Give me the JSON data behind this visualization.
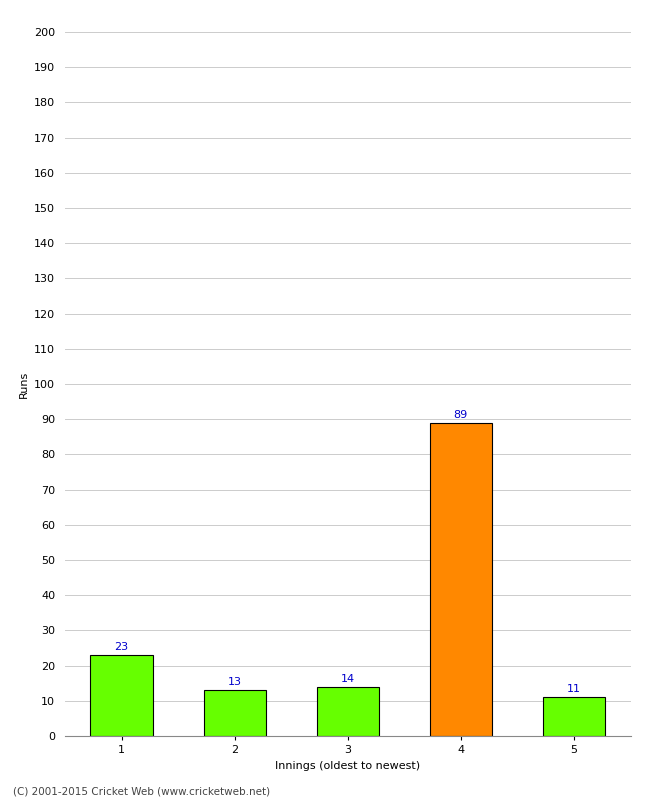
{
  "categories": [
    1,
    2,
    3,
    4,
    5
  ],
  "values": [
    23,
    13,
    14,
    89,
    11
  ],
  "bar_colors": [
    "#66ff00",
    "#66ff00",
    "#66ff00",
    "#ff8800",
    "#66ff00"
  ],
  "bar_edge_color": "#000000",
  "value_labels": [
    23,
    13,
    14,
    89,
    11
  ],
  "value_label_color": "#0000cc",
  "xlabel": "Innings (oldest to newest)",
  "ylabel": "Runs",
  "ylim": [
    0,
    200
  ],
  "yticks": [
    0,
    10,
    20,
    30,
    40,
    50,
    60,
    70,
    80,
    90,
    100,
    110,
    120,
    130,
    140,
    150,
    160,
    170,
    180,
    190,
    200
  ],
  "grid_color": "#cccccc",
  "background_color": "#ffffff",
  "footer": "(C) 2001-2015 Cricket Web (www.cricketweb.net)",
  "footer_color": "#444444",
  "bar_width": 0.55,
  "value_label_fontsize": 8,
  "axis_label_fontsize": 8,
  "tick_label_fontsize": 8,
  "footer_fontsize": 7.5
}
